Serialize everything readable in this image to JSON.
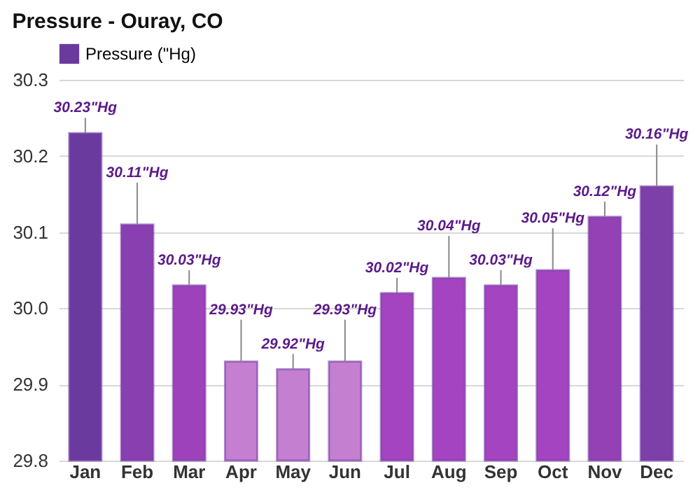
{
  "chart_data": {
    "type": "bar",
    "title": "Pressure - Ouray, CO",
    "categories": [
      "Jan",
      "Feb",
      "Mar",
      "Apr",
      "May",
      "Jun",
      "Jul",
      "Aug",
      "Sep",
      "Oct",
      "Nov",
      "Dec"
    ],
    "series": [
      {
        "name": "Pressure (\"Hg)",
        "color": "#6b3a9f",
        "values": [
          30.23,
          30.11,
          30.03,
          29.93,
          29.92,
          29.93,
          30.02,
          30.04,
          30.03,
          30.05,
          30.12,
          30.16
        ],
        "colors": [
          "#6b3a9f",
          "#8a3fb0",
          "#9e42bb",
          "#c47fd0",
          "#c47fd0",
          "#c47fd0",
          "#a444c0",
          "#a444c0",
          "#a444c0",
          "#a444c0",
          "#9341b5",
          "#7d40a8"
        ],
        "value_labels": [
          "30.23\"Hg",
          "30.11\"Hg",
          "30.03\"Hg",
          "29.93\"Hg",
          "29.92\"Hg",
          "29.93\"Hg",
          "30.02\"Hg",
          "30.04\"Hg",
          "30.03\"Hg",
          "30.05\"Hg",
          "30.12\"Hg",
          "30.16\"Hg"
        ]
      }
    ],
    "ylim": [
      29.8,
      30.3
    ],
    "yticks": [
      29.8,
      29.9,
      {
        "value": 30.0,
        "label": "30.0"
      },
      30.1,
      30.2,
      30.3
    ],
    "grid": "y",
    "legend": "top left"
  }
}
